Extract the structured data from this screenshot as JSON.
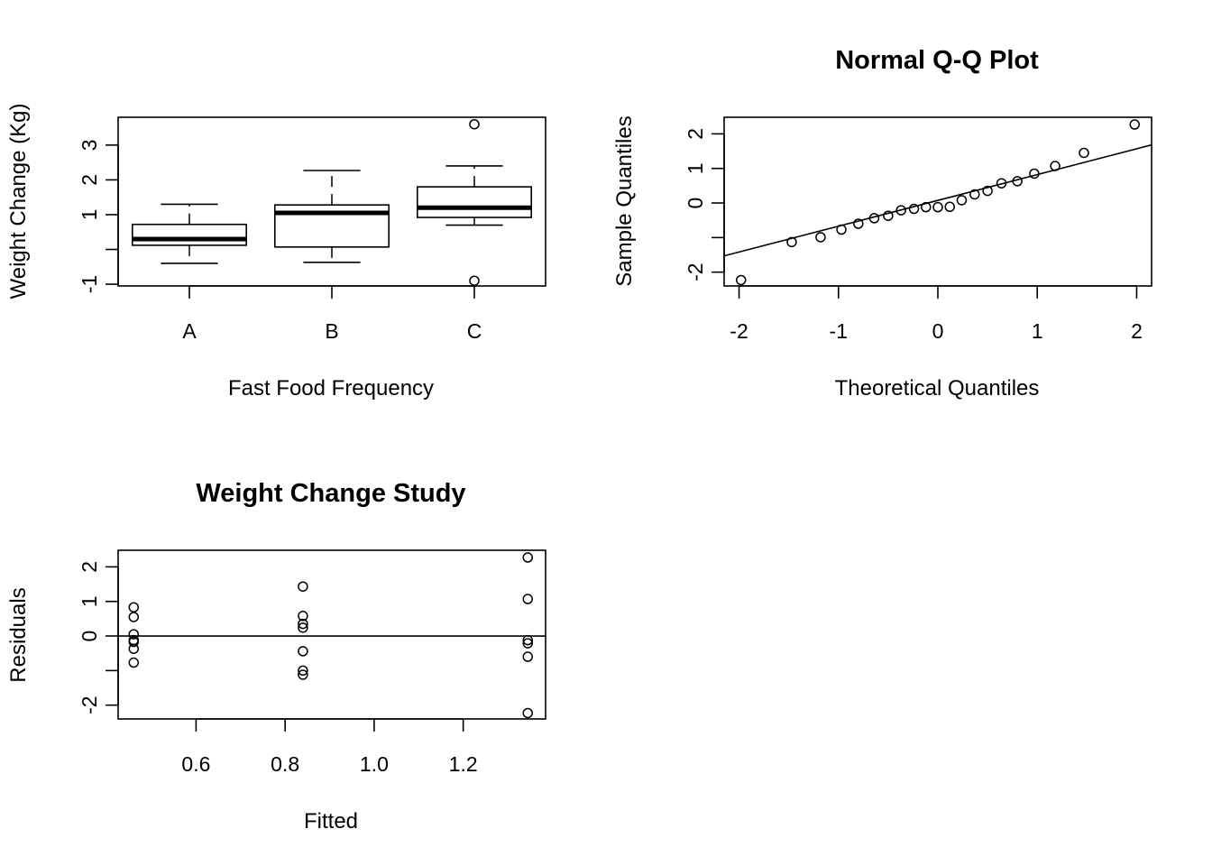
{
  "chart_data": [
    {
      "type": "box",
      "title": "",
      "xlabel": "Fast Food Frequency",
      "ylabel": "Weight Change (Kg)",
      "xlim": [
        0.5,
        3.5
      ],
      "ylim": [
        -1.05,
        3.8
      ],
      "yticks": [
        -1,
        0,
        1,
        2,
        3
      ],
      "ytick_labels": [
        "-1",
        "",
        "1",
        "2",
        "3"
      ],
      "groups": [
        {
          "category": "A",
          "whisker_low": -0.4,
          "q1": 0.12,
          "median": 0.3,
          "q3": 0.72,
          "whisker_high": 1.3,
          "outliers": []
        },
        {
          "category": "B",
          "whisker_low": -0.37,
          "q1": 0.07,
          "median": 1.05,
          "q3": 1.28,
          "whisker_high": 2.27,
          "outliers": []
        },
        {
          "category": "C",
          "whisker_low": 0.7,
          "q1": 0.92,
          "median": 1.2,
          "q3": 1.8,
          "whisker_high": 2.4,
          "outliers": [
            3.6,
            -0.9
          ]
        }
      ]
    },
    {
      "type": "scatter",
      "title": "Normal Q-Q Plot",
      "xlabel": "Theoretical Quantiles",
      "ylabel": "Sample Quantiles",
      "xlim": [
        -2.15,
        2.15
      ],
      "ylim": [
        -2.4,
        2.48
      ],
      "xticks": [
        -2,
        -1,
        0,
        1,
        2
      ],
      "yticks": [
        -2,
        -1,
        0,
        1,
        2
      ],
      "ytick_labels": [
        "-2",
        "",
        "0",
        "1",
        "2"
      ],
      "points": [
        {
          "x": -1.98,
          "y": -2.23
        },
        {
          "x": -1.47,
          "y": -1.13
        },
        {
          "x": -1.18,
          "y": -0.99
        },
        {
          "x": -0.97,
          "y": -0.77
        },
        {
          "x": -0.8,
          "y": -0.6
        },
        {
          "x": -0.64,
          "y": -0.44
        },
        {
          "x": -0.5,
          "y": -0.37
        },
        {
          "x": -0.37,
          "y": -0.21
        },
        {
          "x": -0.24,
          "y": -0.17
        },
        {
          "x": -0.12,
          "y": -0.12
        },
        {
          "x": 0.0,
          "y": -0.12
        },
        {
          "x": 0.12,
          "y": -0.11
        },
        {
          "x": 0.24,
          "y": 0.08
        },
        {
          "x": 0.37,
          "y": 0.25
        },
        {
          "x": 0.5,
          "y": 0.35
        },
        {
          "x": 0.64,
          "y": 0.57
        },
        {
          "x": 0.8,
          "y": 0.63
        },
        {
          "x": 0.97,
          "y": 0.85
        },
        {
          "x": 1.18,
          "y": 1.07
        },
        {
          "x": 1.47,
          "y": 1.45
        },
        {
          "x": 1.98,
          "y": 2.27
        }
      ],
      "reference_line": [
        {
          "x": -2.15,
          "y": -1.53
        },
        {
          "x": 2.15,
          "y": 1.68
        }
      ]
    },
    {
      "type": "scatter",
      "title": "Weight Change Study",
      "xlabel": "Fitted",
      "ylabel": "Residuals",
      "xlim": [
        0.425,
        1.385
      ],
      "ylim": [
        -2.4,
        2.48
      ],
      "xticks": [
        0.6,
        0.8,
        1.0,
        1.2
      ],
      "xtick_labels": [
        "0.6",
        "0.8",
        "1.0",
        "1.2"
      ],
      "yticks": [
        -2,
        -1,
        0,
        1,
        2
      ],
      "ytick_labels": [
        "-2",
        "",
        "0",
        "1",
        "2"
      ],
      "hline": 0,
      "points": [
        {
          "x": 0.46,
          "y": 0.83
        },
        {
          "x": 0.46,
          "y": 0.55
        },
        {
          "x": 0.46,
          "y": 0.05
        },
        {
          "x": 0.46,
          "y": -0.12
        },
        {
          "x": 0.46,
          "y": -0.17
        },
        {
          "x": 0.46,
          "y": -0.37
        },
        {
          "x": 0.46,
          "y": -0.77
        },
        {
          "x": 0.84,
          "y": 1.43
        },
        {
          "x": 0.84,
          "y": 0.58
        },
        {
          "x": 0.84,
          "y": 0.35
        },
        {
          "x": 0.84,
          "y": 0.24
        },
        {
          "x": 0.84,
          "y": -0.44
        },
        {
          "x": 0.84,
          "y": -1.0
        },
        {
          "x": 0.84,
          "y": -1.12
        },
        {
          "x": 1.345,
          "y": 2.27
        },
        {
          "x": 1.345,
          "y": 1.07
        },
        {
          "x": 1.345,
          "y": -0.12
        },
        {
          "x": 1.345,
          "y": -0.21
        },
        {
          "x": 1.345,
          "y": -0.6
        },
        {
          "x": 1.345,
          "y": -2.23
        }
      ]
    }
  ]
}
